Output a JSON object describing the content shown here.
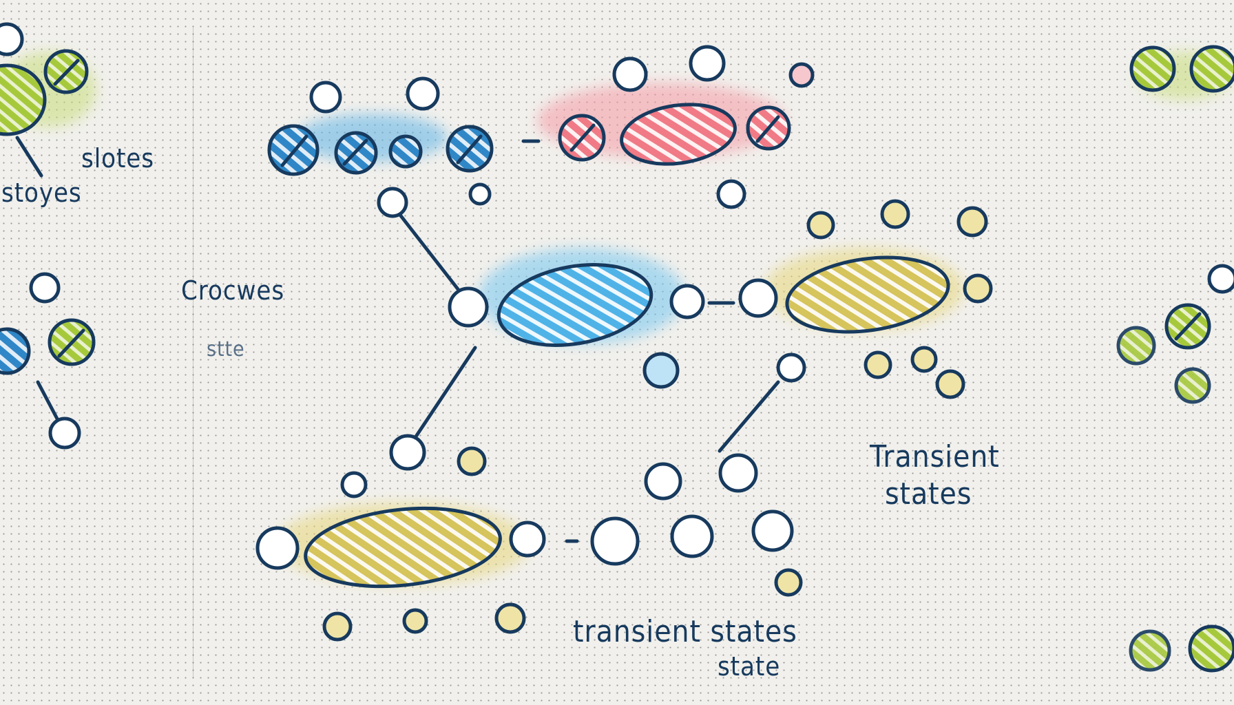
{
  "labels": {
    "left_slotes": "slotes",
    "left_stoyes": "stoyes",
    "crocwes": "Crocwes",
    "crocwes_sub": "stte",
    "transient_right_1": "Transient",
    "transient_right_2": "states",
    "transient_bottom": "transient states",
    "transient_bottom_sub": "state"
  },
  "colors": {
    "ink": "#173a5e",
    "blue": "#2f87c7",
    "light_blue": "#4fb3e8",
    "red": "#f07a86",
    "yellow": "#d6c45c",
    "green": "#a6c93c"
  },
  "clusters": [
    {
      "name": "blue-cluster",
      "color": "blue"
    },
    {
      "name": "red-cluster",
      "color": "red"
    },
    {
      "name": "light-blue-cluster",
      "color": "light_blue"
    },
    {
      "name": "yellow-cluster-right",
      "color": "yellow"
    },
    {
      "name": "yellow-cluster-bottom",
      "color": "yellow"
    },
    {
      "name": "green-cluster-left",
      "color": "green"
    },
    {
      "name": "green-cluster-right",
      "color": "green"
    }
  ]
}
